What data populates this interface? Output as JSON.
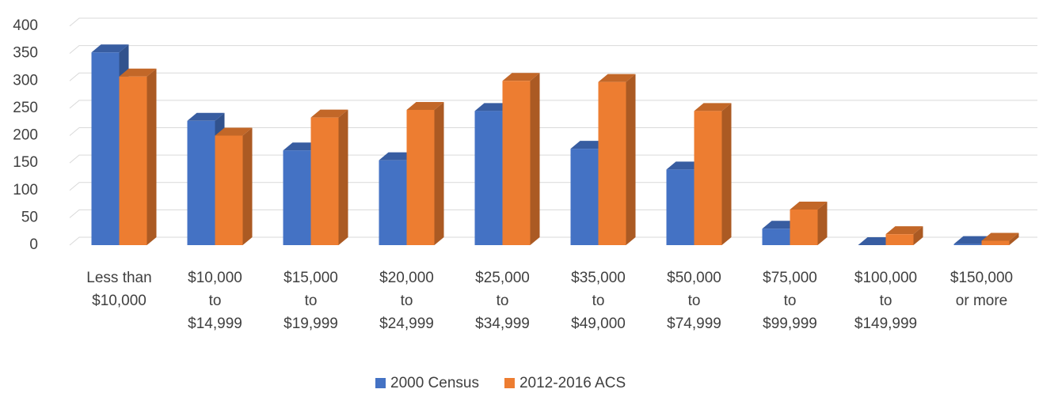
{
  "chart_data": {
    "type": "bar",
    "categories": [
      "Less than\n$10,000",
      "$10,000\nto\n$14,999",
      "$15,000\nto\n$19,999",
      "$20,000\nto\n$24,999",
      "$25,000\nto\n$34,999",
      "$35,000\nto\n$49,000",
      "$50,000\nto\n$74,999",
      "$75,000\nto\n$99,999",
      "$100,000\nto\n$149,999",
      "$150,000\nor more"
    ],
    "series": [
      {
        "name": "2000 Census",
        "color": "#4472c4",
        "values": [
          352,
          227,
          173,
          155,
          245,
          176,
          138,
          30,
          0,
          2
        ]
      },
      {
        "name": "2012-2016 ACS",
        "color": "#ed7d31",
        "values": [
          308,
          200,
          233,
          247,
          300,
          298,
          245,
          65,
          20,
          8
        ]
      }
    ],
    "ylim": [
      0,
      400
    ],
    "yticks": [
      0,
      50,
      100,
      150,
      200,
      250,
      300,
      350,
      400
    ],
    "grid": true,
    "legend": "bottom"
  }
}
